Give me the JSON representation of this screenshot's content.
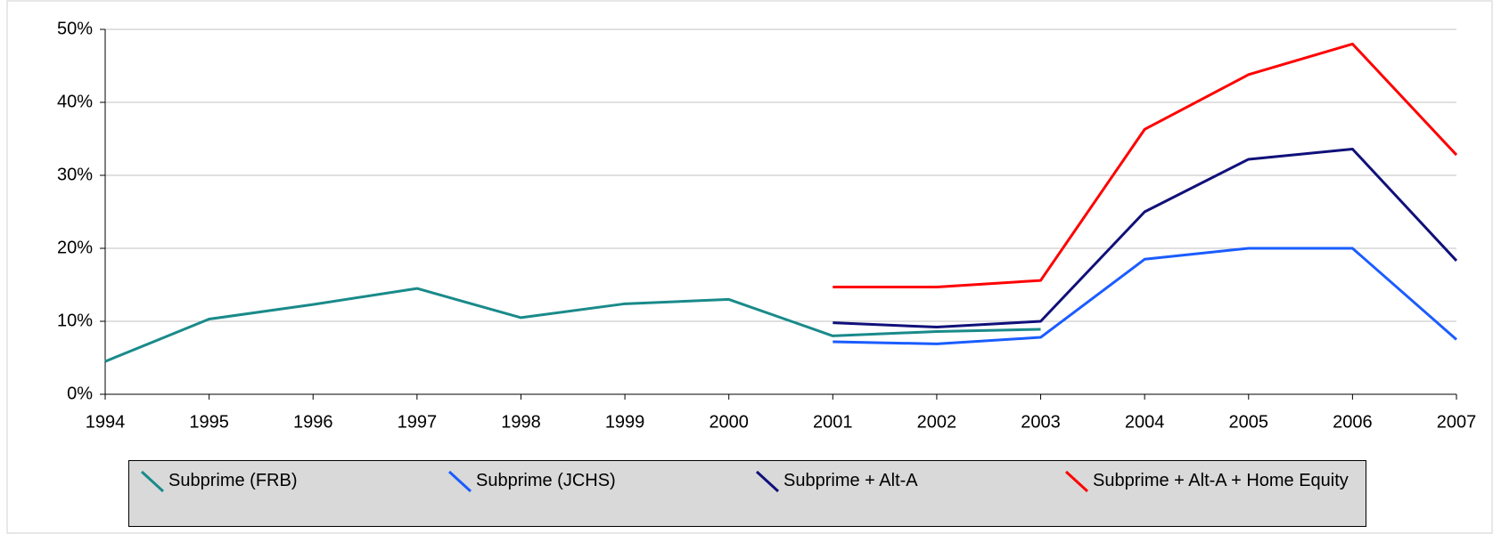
{
  "chart_data": {
    "type": "line",
    "x": [
      1994,
      1995,
      1996,
      1997,
      1998,
      1999,
      2000,
      2001,
      2002,
      2003,
      2004,
      2005,
      2006,
      2007
    ],
    "xlim": [
      1994,
      2007
    ],
    "xticks": [
      1994,
      1995,
      1996,
      1997,
      1998,
      1999,
      2000,
      2001,
      2002,
      2003,
      2004,
      2005,
      2006,
      2007
    ],
    "ylim": [
      0,
      50
    ],
    "yticks": [
      {
        "value": 0,
        "label": "0%"
      },
      {
        "value": 10,
        "label": "10%"
      },
      {
        "value": 20,
        "label": "20%"
      },
      {
        "value": 30,
        "label": "30%"
      },
      {
        "value": 40,
        "label": "40%"
      },
      {
        "value": 50,
        "label": "50%"
      }
    ],
    "grid": true,
    "series": [
      {
        "name": "Subprime (FRB)",
        "color": "#1a8a8a",
        "values": [
          4.5,
          10.3,
          12.3,
          14.5,
          10.5,
          12.4,
          13.0,
          8.0,
          8.6,
          8.9,
          null,
          null,
          null,
          null
        ]
      },
      {
        "name": "Subprime (JCHS)",
        "color": "#1a5cff",
        "values": [
          null,
          null,
          null,
          null,
          null,
          null,
          null,
          7.2,
          6.9,
          7.8,
          18.5,
          20.0,
          20.0,
          7.5
        ]
      },
      {
        "name": "Subprime + Alt-A",
        "color": "#10107a",
        "values": [
          null,
          null,
          null,
          null,
          null,
          null,
          null,
          9.8,
          9.2,
          10.0,
          25.0,
          32.2,
          33.6,
          18.3
        ]
      },
      {
        "name": "Subprime + Alt-A + Home Equity",
        "color": "#ff0000",
        "values": [
          null,
          null,
          null,
          null,
          null,
          null,
          null,
          14.7,
          14.7,
          15.6,
          36.3,
          43.8,
          48.0,
          32.8
        ]
      }
    ]
  }
}
